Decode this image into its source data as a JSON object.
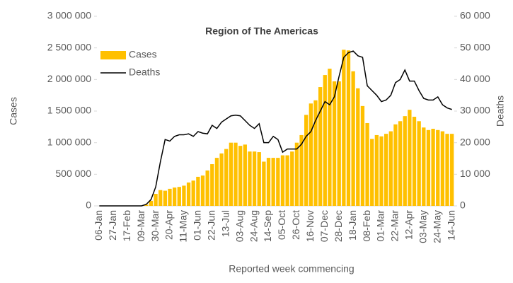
{
  "chart_data": {
    "type": "bar-line",
    "title": "Region of The Americas",
    "x_label": "Reported week commencing",
    "y_label": "Cases",
    "y2_label": "Deaths",
    "categories": [
      "06-Jan",
      null,
      null,
      "27-Jan",
      null,
      null,
      "17-Feb",
      null,
      null,
      "09-Mar",
      null,
      null,
      "30-Mar",
      null,
      null,
      "20-Apr",
      null,
      null,
      "11-May",
      null,
      null,
      "01-Jun",
      null,
      null,
      "22-Jun",
      null,
      null,
      "13-Jul",
      null,
      null,
      "03-Aug",
      null,
      null,
      "24-Aug",
      null,
      null,
      "14-Sep",
      null,
      null,
      "05-Oct",
      null,
      null,
      "26-Oct",
      null,
      null,
      "16-Nov",
      null,
      null,
      "07-Dec",
      null,
      null,
      "28-Dec",
      null,
      null,
      "18-Jan",
      null,
      null,
      "08-Feb",
      null,
      null,
      "01-Mar",
      null,
      null,
      "22-Mar",
      null,
      null,
      "12-Apr",
      null,
      null,
      "03-May",
      null,
      null,
      "24-May",
      null,
      null,
      "14-Jun"
    ],
    "series": [
      {
        "name": "Cases",
        "type": "bar",
        "color": "#ffc000",
        "axis": "y",
        "values": [
          0,
          0,
          0,
          0,
          0,
          0,
          0,
          0,
          0,
          5000,
          20000,
          80000,
          190000,
          250000,
          240000,
          270000,
          290000,
          300000,
          320000,
          370000,
          400000,
          460000,
          480000,
          560000,
          660000,
          760000,
          830000,
          900000,
          1000000,
          1000000,
          950000,
          970000,
          860000,
          860000,
          850000,
          700000,
          760000,
          760000,
          760000,
          800000,
          800000,
          860000,
          1000000,
          1120000,
          1440000,
          1620000,
          1670000,
          1880000,
          2070000,
          2170000,
          1970000,
          1970000,
          2470000,
          2460000,
          2130000,
          1860000,
          1580000,
          1310000,
          1060000,
          1120000,
          1100000,
          1140000,
          1180000,
          1290000,
          1340000,
          1420000,
          1520000,
          1410000,
          1340000,
          1240000,
          1200000,
          1220000,
          1200000,
          1180000,
          1140000,
          1140000
        ]
      },
      {
        "name": "Deaths",
        "type": "line",
        "color": "#000000",
        "axis": "y2",
        "values": [
          0,
          0,
          0,
          0,
          0,
          0,
          0,
          0,
          0,
          0,
          500,
          2000,
          6000,
          14000,
          21000,
          20500,
          22000,
          22500,
          22500,
          22800,
          22000,
          23500,
          23000,
          22800,
          25500,
          24500,
          26500,
          27500,
          28500,
          28700,
          28500,
          27000,
          25500,
          24500,
          26000,
          20000,
          20000,
          22000,
          21000,
          17000,
          18000,
          18000,
          18000,
          19500,
          22000,
          23500,
          27000,
          30000,
          33000,
          32000,
          34500,
          41000,
          47000,
          48500,
          49000,
          47500,
          47000,
          38000,
          36500,
          35000,
          33000,
          33500,
          35000,
          39000,
          40000,
          43000,
          39500,
          39500,
          36500,
          34000,
          33500,
          33500,
          34500,
          32000,
          31000,
          30500
        ]
      }
    ],
    "ylim": [
      0,
      3000000
    ],
    "yticks": [
      0,
      {
        "value": 500000,
        "label": "500 000"
      },
      {
        "value": 1000000,
        "label": "1 000 000"
      },
      {
        "value": 1500000,
        "label": "1 500 000"
      },
      {
        "value": 2000000,
        "label": "2 000 000"
      },
      {
        "value": 2500000,
        "label": "2 500 000"
      },
      {
        "value": 3000000,
        "label": "3 000 000"
      }
    ],
    "y2lim": [
      0,
      60000
    ],
    "y2ticks": [
      0,
      {
        "value": 10000,
        "label": "10 000"
      },
      {
        "value": 20000,
        "label": "20 000"
      },
      {
        "value": 30000,
        "label": "30 000"
      },
      {
        "value": 40000,
        "label": "40 000"
      },
      {
        "value": 50000,
        "label": "50 000"
      },
      {
        "value": 60000,
        "label": "60 000"
      }
    ],
    "legend": "upper left",
    "grid": false
  }
}
